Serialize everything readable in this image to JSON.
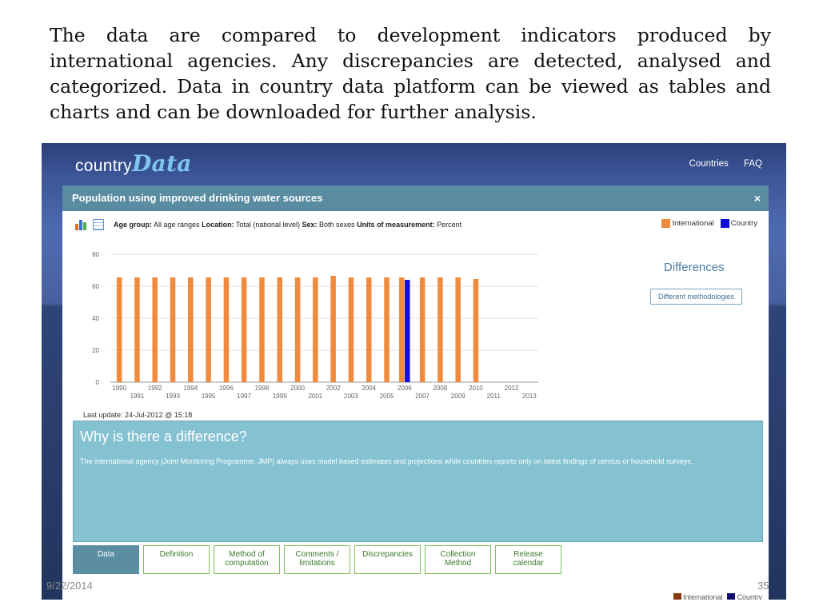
{
  "intro_text": "The data are compared to development indicators produced by international agencies. Any discrepancies are detected, analysed and categorized. Data in country data platform can be viewed as tables and charts and can be downloaded for further analysis.",
  "site": {
    "brand_plain": "country",
    "brand_accent": "Data",
    "nav": [
      "Countries",
      "FAQ"
    ]
  },
  "modal": {
    "title": "Population using improved drinking water sources",
    "close": "×",
    "meta": {
      "age_label": "Age group:",
      "age_value": "All age ranges",
      "location_label": "Location:",
      "location_value": "Total (national level)",
      "sex_label": "Sex:",
      "sex_value": "Both sexes",
      "units_label": "Units of measurement:",
      "units_value": "Percent"
    },
    "legend": [
      "International",
      "Country"
    ],
    "differences_title": "Differences",
    "differences_button": "Different methodologies",
    "last_update": "Last update: 24-Jul-2012 @ 15:18",
    "why_title": "Why is there a difference?",
    "why_text": "The international agency (Joint Monitoring Programme, JMP) always uses model based estimates and projections while countries reports only on latest findings of census or household surveys.",
    "tabs": [
      [
        "Data"
      ],
      [
        "Definition"
      ],
      [
        "Method of",
        "computation"
      ],
      [
        "Comments /",
        "limitations"
      ],
      [
        "Discrepancies"
      ],
      [
        "Collection",
        "Method"
      ],
      [
        "Release",
        "calendar"
      ]
    ],
    "active_tab": 0
  },
  "colors": {
    "international": "#f08a3c",
    "country": "#1010d8",
    "header": "#5a8ca1",
    "why_bg": "#84c2d2"
  },
  "chart_data": {
    "type": "bar",
    "categories": [
      "1990",
      "1991",
      "1992",
      "1993",
      "1994",
      "1995",
      "1996",
      "1997",
      "1998",
      "1999",
      "2000",
      "2001",
      "2002",
      "2003",
      "2004",
      "2005",
      "2006",
      "2007",
      "2008",
      "2009",
      "2010",
      "2011",
      "2012",
      "2013"
    ],
    "series": [
      {
        "name": "International",
        "values": [
          65.5,
          65.5,
          65.5,
          65.5,
          65.5,
          65.5,
          65.5,
          65.5,
          65.5,
          65.5,
          65.5,
          65.5,
          66.5,
          65.5,
          65.5,
          65.5,
          65.5,
          65.5,
          65.5,
          65.5,
          64.5,
          null,
          null,
          null
        ]
      },
      {
        "name": "Country",
        "values": [
          null,
          null,
          null,
          null,
          null,
          null,
          null,
          null,
          null,
          null,
          null,
          null,
          null,
          null,
          null,
          null,
          64,
          null,
          null,
          null,
          null,
          null,
          null,
          null
        ]
      }
    ],
    "yticks": [
      0,
      20,
      40,
      60,
      80
    ],
    "ylim": [
      0,
      80
    ],
    "grid": true
  },
  "footer": {
    "date": "9/22/2014",
    "page": "35"
  }
}
